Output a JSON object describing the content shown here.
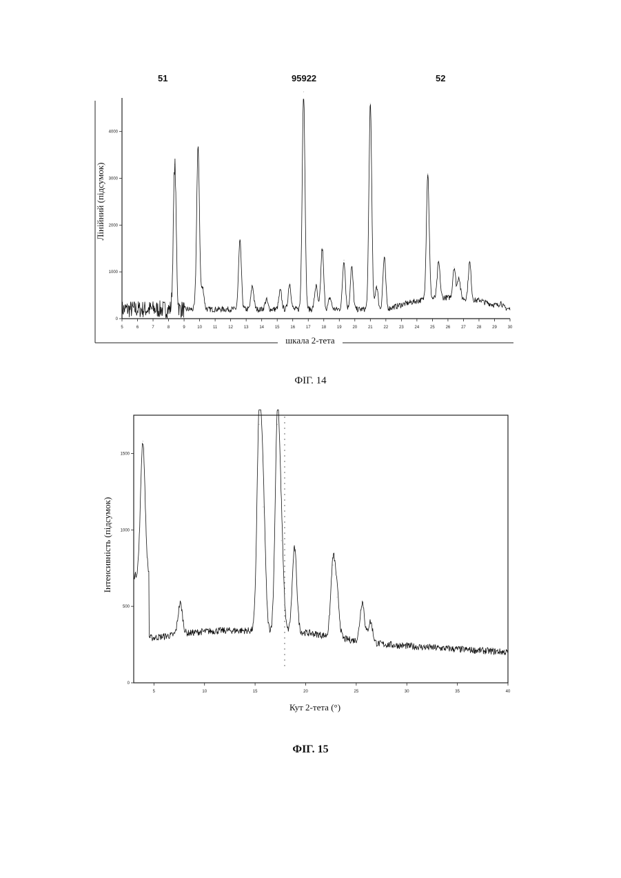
{
  "header": {
    "left": "51",
    "center": "95922",
    "right": "52"
  },
  "figures": {
    "fig14_caption": "ФІГ. 14",
    "fig15_caption": "ФІГ. 15"
  },
  "chart_data": [
    {
      "type": "line",
      "xlabel": "шкала 2-тета",
      "ylabel": "Лінійний (підсумок)",
      "xlim": [
        5,
        30
      ],
      "ylim": [
        0,
        4600
      ],
      "x_ticks": [
        5,
        6,
        7,
        8,
        9,
        10,
        11,
        12,
        13,
        14,
        15,
        16,
        17,
        18,
        19,
        20,
        21,
        22,
        23,
        24,
        25,
        26,
        27,
        28,
        29,
        30
      ],
      "y_ticks": [
        0,
        1000,
        2000,
        3000,
        4000
      ],
      "grid": false,
      "peaks": [
        [
          8.4,
          3300
        ],
        [
          9.9,
          3650
        ],
        [
          10.2,
          650
        ],
        [
          12.6,
          1650
        ],
        [
          13.4,
          700
        ],
        [
          14.3,
          400
        ],
        [
          15.2,
          600
        ],
        [
          15.8,
          750
        ],
        [
          16.7,
          4850
        ],
        [
          17.5,
          700
        ],
        [
          17.9,
          1500
        ],
        [
          18.4,
          450
        ],
        [
          19.3,
          1250
        ],
        [
          19.8,
          1100
        ],
        [
          21.0,
          4600
        ],
        [
          21.4,
          700
        ],
        [
          21.9,
          1300
        ],
        [
          24.7,
          3100
        ],
        [
          25.4,
          1200
        ],
        [
          26.4,
          1100
        ],
        [
          26.7,
          900
        ],
        [
          27.4,
          1200
        ],
        [
          28.1,
          400
        ],
        [
          29.4,
          350
        ]
      ]
    },
    {
      "type": "line",
      "xlabel": "Кут 2-тета (°)",
      "ylabel": "Інтенсивність (підсумок)",
      "xlim": [
        3,
        40
      ],
      "ylim": [
        0,
        1750
      ],
      "x_ticks": [
        5,
        10,
        15,
        20,
        25,
        30,
        35,
        40
      ],
      "y_ticks": [
        0,
        500,
        1000,
        1500
      ],
      "grid": false,
      "peaks": [
        [
          3.9,
          1580
        ],
        [
          7.6,
          520
        ],
        [
          15.4,
          1690
        ],
        [
          15.8,
          1150
        ],
        [
          17.2,
          1690
        ],
        [
          17.6,
          930
        ],
        [
          18.9,
          880
        ],
        [
          22.7,
          770
        ],
        [
          23.1,
          560
        ],
        [
          25.6,
          530
        ],
        [
          26.4,
          400
        ]
      ]
    }
  ]
}
